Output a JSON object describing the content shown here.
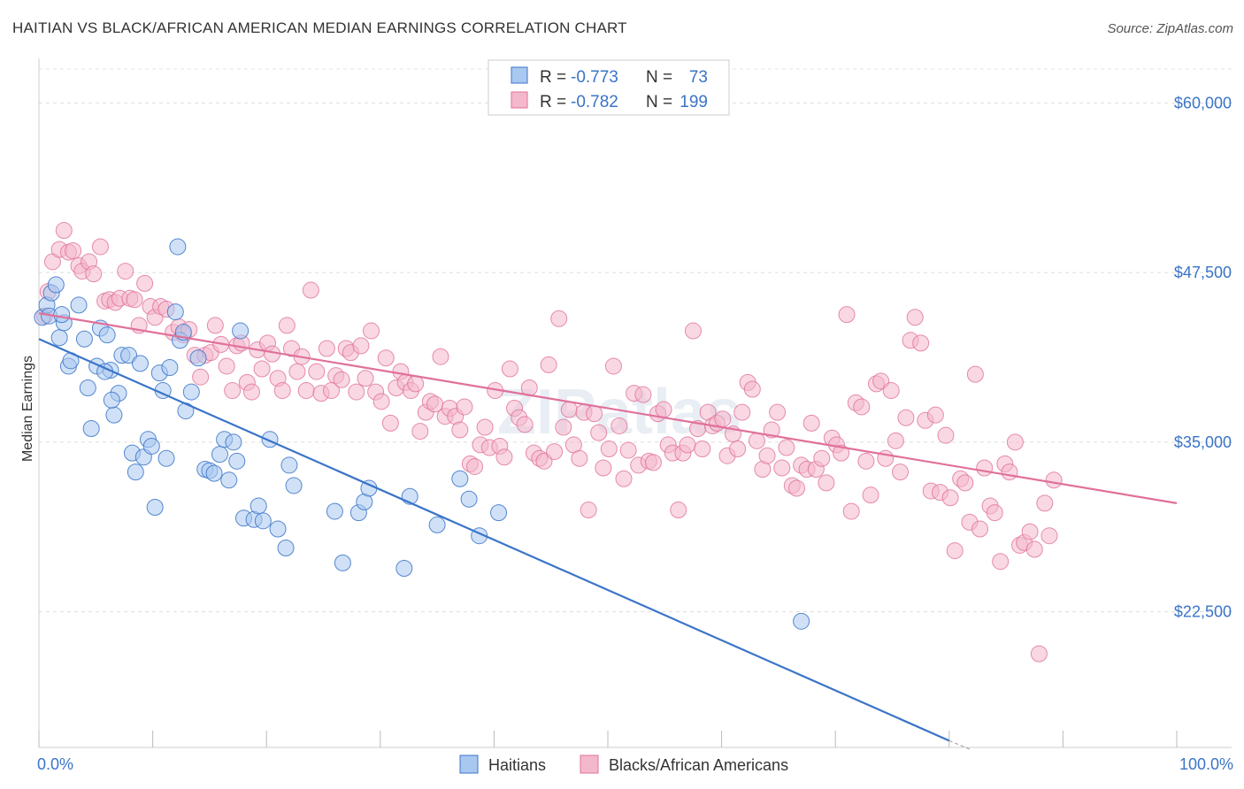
{
  "title": "HAITIAN VS BLACK/AFRICAN AMERICAN MEDIAN EARNINGS CORRELATION CHART",
  "source": "Source: ZipAtlas.com",
  "watermark": "ZIPatlas",
  "colors": {
    "blue": "#3a74c8",
    "blue_fill": "#a9c8f0",
    "pink": "#e0709a",
    "pink_fill": "#f4b8cc",
    "grid": "#dddddd",
    "text": "#333333"
  },
  "legend": {
    "rows": [
      {
        "r_label": "R = ",
        "r_value": "-0.773",
        "n_label": "N = ",
        "n_value": "73"
      },
      {
        "r_label": "R = ",
        "r_value": "-0.782",
        "n_label": "N = ",
        "n_value": "199"
      }
    ]
  },
  "chart_data": {
    "type": "scatter",
    "title": "HAITIAN VS BLACK/AFRICAN AMERICAN MEDIAN EARNINGS CORRELATION CHART",
    "xlabel": "",
    "ylabel": "Median Earnings",
    "xlim": [
      0,
      100
    ],
    "ylim": [
      12500,
      62500
    ],
    "y_ticks": [
      22500,
      35000,
      47500,
      60000
    ],
    "y_tick_labels": [
      "$22,500",
      "$35,000",
      "$47,500",
      "$60,000"
    ],
    "x_tick_labels": [
      "0.0%",
      "100.0%"
    ],
    "grid": true,
    "legend_position": "top-center",
    "series": [
      {
        "name": "Haitians",
        "color": "#3a74c8",
        "r": -0.773,
        "n": 73,
        "trend": {
          "x": [
            0,
            80
          ],
          "y": [
            42600,
            13000
          ]
        },
        "trend_dashed_extension": {
          "x": [
            80,
            82
          ],
          "y": [
            13000,
            12300
          ]
        },
        "points": [
          [
            0.3,
            44.2
          ],
          [
            0.7,
            45.1
          ],
          [
            0.9,
            44.3
          ],
          [
            1.1,
            46.0
          ],
          [
            1.5,
            46.6
          ],
          [
            1.8,
            42.7
          ],
          [
            2.2,
            43.8
          ],
          [
            2.6,
            40.6
          ],
          [
            2.8,
            41.0
          ],
          [
            3.5,
            45.1
          ],
          [
            4.0,
            42.6
          ],
          [
            4.3,
            39.0
          ],
          [
            4.6,
            36.0
          ],
          [
            5.1,
            40.6
          ],
          [
            5.4,
            43.4
          ],
          [
            6.0,
            42.9
          ],
          [
            6.3,
            40.3
          ],
          [
            6.6,
            37.0
          ],
          [
            7.0,
            38.6
          ],
          [
            7.3,
            41.4
          ],
          [
            7.9,
            41.4
          ],
          [
            8.2,
            34.2
          ],
          [
            8.5,
            32.8
          ],
          [
            8.9,
            40.8
          ],
          [
            9.2,
            33.9
          ],
          [
            9.6,
            35.2
          ],
          [
            9.9,
            34.7
          ],
          [
            10.2,
            30.2
          ],
          [
            10.6,
            40.1
          ],
          [
            10.9,
            38.8
          ],
          [
            11.2,
            33.8
          ],
          [
            11.5,
            40.5
          ],
          [
            12.0,
            44.6
          ],
          [
            12.4,
            42.5
          ],
          [
            12.7,
            43.1
          ],
          [
            12.9,
            37.3
          ],
          [
            13.4,
            38.7
          ],
          [
            14.0,
            41.2
          ],
          [
            14.6,
            33.0
          ],
          [
            15.0,
            32.9
          ],
          [
            15.4,
            32.7
          ],
          [
            15.9,
            34.1
          ],
          [
            16.3,
            35.2
          ],
          [
            16.7,
            32.2
          ],
          [
            17.1,
            35.0
          ],
          [
            17.4,
            33.6
          ],
          [
            17.7,
            43.2
          ],
          [
            18.0,
            29.4
          ],
          [
            18.9,
            29.3
          ],
          [
            19.3,
            30.3
          ],
          [
            19.7,
            29.2
          ],
          [
            20.3,
            35.2
          ],
          [
            21.0,
            28.6
          ],
          [
            21.7,
            27.2
          ],
          [
            22.0,
            33.3
          ],
          [
            22.4,
            31.8
          ],
          [
            26.0,
            29.9
          ],
          [
            26.7,
            26.1
          ],
          [
            28.1,
            29.8
          ],
          [
            28.6,
            30.6
          ],
          [
            29.0,
            31.6
          ],
          [
            32.1,
            25.7
          ],
          [
            32.6,
            31.0
          ],
          [
            35.0,
            28.9
          ],
          [
            37.0,
            32.3
          ],
          [
            37.8,
            30.8
          ],
          [
            38.7,
            28.1
          ],
          [
            40.4,
            29.8
          ],
          [
            67.0,
            21.8
          ],
          [
            12.2,
            49.4
          ],
          [
            2.0,
            44.4
          ],
          [
            5.8,
            40.2
          ],
          [
            6.4,
            38.1
          ]
        ]
      },
      {
        "name": "Blacks/African Americans",
        "color": "#e0709a",
        "r": -0.782,
        "n": 199,
        "trend": {
          "x": [
            0,
            100
          ],
          "y": [
            44500,
            30500
          ]
        },
        "points": [
          [
            0.5,
            44.3
          ],
          [
            0.8,
            46.1
          ],
          [
            1.2,
            48.3
          ],
          [
            1.8,
            49.2
          ],
          [
            2.2,
            50.6
          ],
          [
            2.6,
            49.0
          ],
          [
            3.0,
            49.1
          ],
          [
            3.5,
            48.0
          ],
          [
            3.8,
            47.6
          ],
          [
            4.4,
            48.3
          ],
          [
            4.8,
            47.4
          ],
          [
            5.4,
            49.4
          ],
          [
            5.8,
            45.4
          ],
          [
            6.2,
            45.5
          ],
          [
            6.7,
            45.3
          ],
          [
            7.1,
            45.6
          ],
          [
            7.6,
            47.6
          ],
          [
            8.0,
            45.6
          ],
          [
            8.4,
            45.5
          ],
          [
            8.8,
            43.6
          ],
          [
            9.3,
            46.7
          ],
          [
            9.8,
            45.0
          ],
          [
            10.2,
            44.2
          ],
          [
            10.7,
            45.0
          ],
          [
            11.2,
            44.8
          ],
          [
            11.8,
            43.1
          ],
          [
            12.3,
            43.5
          ],
          [
            12.7,
            42.9
          ],
          [
            13.2,
            43.3
          ],
          [
            13.7,
            41.4
          ],
          [
            14.2,
            39.8
          ],
          [
            14.6,
            41.4
          ],
          [
            15.1,
            41.6
          ],
          [
            15.5,
            43.6
          ],
          [
            16.0,
            42.2
          ],
          [
            16.5,
            40.6
          ],
          [
            17.0,
            38.8
          ],
          [
            17.4,
            42.1
          ],
          [
            17.8,
            42.3
          ],
          [
            18.3,
            39.4
          ],
          [
            18.7,
            38.7
          ],
          [
            19.2,
            41.8
          ],
          [
            19.6,
            40.4
          ],
          [
            20.1,
            42.3
          ],
          [
            20.5,
            41.5
          ],
          [
            21.0,
            39.7
          ],
          [
            21.4,
            38.8
          ],
          [
            21.8,
            43.6
          ],
          [
            22.2,
            41.9
          ],
          [
            22.7,
            40.2
          ],
          [
            23.1,
            41.3
          ],
          [
            23.5,
            38.8
          ],
          [
            23.9,
            46.2
          ],
          [
            24.4,
            40.2
          ],
          [
            24.8,
            38.6
          ],
          [
            25.3,
            41.9
          ],
          [
            25.7,
            38.8
          ],
          [
            26.1,
            39.9
          ],
          [
            26.6,
            39.6
          ],
          [
            27.0,
            41.9
          ],
          [
            27.4,
            41.6
          ],
          [
            27.9,
            38.7
          ],
          [
            28.3,
            42.1
          ],
          [
            28.7,
            39.7
          ],
          [
            29.2,
            43.2
          ],
          [
            29.6,
            38.7
          ],
          [
            30.1,
            38.0
          ],
          [
            30.5,
            41.2
          ],
          [
            30.9,
            36.4
          ],
          [
            31.4,
            39.0
          ],
          [
            31.8,
            40.2
          ],
          [
            32.2,
            39.4
          ],
          [
            32.7,
            38.8
          ],
          [
            33.1,
            39.3
          ],
          [
            33.5,
            35.8
          ],
          [
            34.0,
            37.2
          ],
          [
            34.4,
            38.0
          ],
          [
            34.8,
            37.8
          ],
          [
            35.3,
            41.3
          ],
          [
            35.7,
            36.9
          ],
          [
            36.1,
            37.5
          ],
          [
            36.6,
            36.9
          ],
          [
            37.0,
            35.9
          ],
          [
            37.4,
            37.6
          ],
          [
            37.9,
            33.4
          ],
          [
            38.3,
            33.2
          ],
          [
            38.8,
            34.8
          ],
          [
            39.2,
            36.1
          ],
          [
            39.6,
            34.6
          ],
          [
            40.1,
            38.8
          ],
          [
            40.5,
            34.7
          ],
          [
            40.9,
            33.9
          ],
          [
            41.4,
            40.4
          ],
          [
            41.8,
            37.5
          ],
          [
            42.2,
            36.8
          ],
          [
            42.7,
            36.3
          ],
          [
            43.1,
            39.0
          ],
          [
            43.5,
            34.2
          ],
          [
            44.0,
            33.8
          ],
          [
            44.4,
            33.6
          ],
          [
            44.8,
            40.7
          ],
          [
            45.3,
            34.3
          ],
          [
            45.7,
            44.1
          ],
          [
            46.1,
            36.1
          ],
          [
            46.6,
            37.4
          ],
          [
            47.0,
            34.8
          ],
          [
            47.5,
            33.8
          ],
          [
            47.9,
            37.2
          ],
          [
            48.3,
            30.0
          ],
          [
            48.8,
            37.1
          ],
          [
            49.2,
            35.7
          ],
          [
            49.6,
            33.1
          ],
          [
            50.1,
            34.5
          ],
          [
            50.5,
            40.6
          ],
          [
            51.0,
            36.2
          ],
          [
            51.4,
            32.3
          ],
          [
            51.8,
            34.4
          ],
          [
            52.3,
            38.6
          ],
          [
            52.7,
            33.3
          ],
          [
            53.1,
            38.5
          ],
          [
            53.6,
            33.6
          ],
          [
            54.0,
            33.5
          ],
          [
            54.4,
            37.1
          ],
          [
            54.9,
            37.4
          ],
          [
            55.3,
            34.8
          ],
          [
            55.7,
            34.2
          ],
          [
            56.2,
            30.0
          ],
          [
            56.6,
            34.2
          ],
          [
            57.0,
            34.8
          ],
          [
            57.5,
            43.2
          ],
          [
            57.9,
            36.0
          ],
          [
            58.3,
            34.5
          ],
          [
            58.8,
            37.2
          ],
          [
            59.2,
            36.2
          ],
          [
            59.6,
            36.4
          ],
          [
            60.1,
            36.7
          ],
          [
            60.5,
            34.0
          ],
          [
            61.0,
            35.6
          ],
          [
            61.4,
            34.5
          ],
          [
            61.8,
            37.2
          ],
          [
            62.3,
            39.4
          ],
          [
            62.7,
            38.9
          ],
          [
            63.1,
            35.1
          ],
          [
            63.6,
            33.0
          ],
          [
            64.0,
            34.0
          ],
          [
            64.4,
            35.9
          ],
          [
            64.9,
            37.2
          ],
          [
            65.3,
            33.1
          ],
          [
            65.7,
            34.6
          ],
          [
            66.2,
            31.8
          ],
          [
            66.6,
            31.6
          ],
          [
            67.0,
            33.3
          ],
          [
            67.5,
            33.0
          ],
          [
            67.9,
            36.4
          ],
          [
            68.3,
            33.0
          ],
          [
            68.8,
            33.8
          ],
          [
            69.2,
            32.0
          ],
          [
            69.7,
            35.3
          ],
          [
            70.1,
            34.8
          ],
          [
            70.5,
            34.2
          ],
          [
            71.0,
            44.4
          ],
          [
            71.4,
            29.9
          ],
          [
            71.8,
            37.9
          ],
          [
            72.3,
            37.6
          ],
          [
            72.7,
            33.6
          ],
          [
            73.1,
            31.1
          ],
          [
            73.6,
            39.3
          ],
          [
            74.0,
            39.5
          ],
          [
            74.4,
            33.8
          ],
          [
            74.9,
            38.8
          ],
          [
            75.3,
            35.1
          ],
          [
            75.7,
            32.8
          ],
          [
            76.2,
            36.8
          ],
          [
            76.6,
            42.5
          ],
          [
            77.0,
            44.2
          ],
          [
            77.5,
            42.3
          ],
          [
            77.9,
            36.6
          ],
          [
            78.4,
            31.4
          ],
          [
            78.8,
            37.0
          ],
          [
            79.2,
            31.3
          ],
          [
            79.7,
            35.5
          ],
          [
            80.1,
            30.9
          ],
          [
            80.5,
            27.0
          ],
          [
            81.0,
            32.3
          ],
          [
            81.4,
            32.0
          ],
          [
            81.8,
            29.1
          ],
          [
            82.3,
            40.0
          ],
          [
            82.7,
            28.6
          ],
          [
            83.1,
            33.1
          ],
          [
            83.6,
            30.3
          ],
          [
            84.0,
            29.8
          ],
          [
            84.5,
            26.2
          ],
          [
            84.9,
            33.4
          ],
          [
            85.3,
            32.8
          ],
          [
            85.8,
            35.0
          ],
          [
            86.2,
            27.4
          ],
          [
            86.6,
            27.6
          ],
          [
            87.1,
            28.4
          ],
          [
            87.5,
            27.1
          ],
          [
            87.9,
            19.4
          ],
          [
            88.4,
            30.5
          ],
          [
            88.8,
            28.1
          ],
          [
            89.2,
            32.2
          ]
        ]
      }
    ]
  }
}
